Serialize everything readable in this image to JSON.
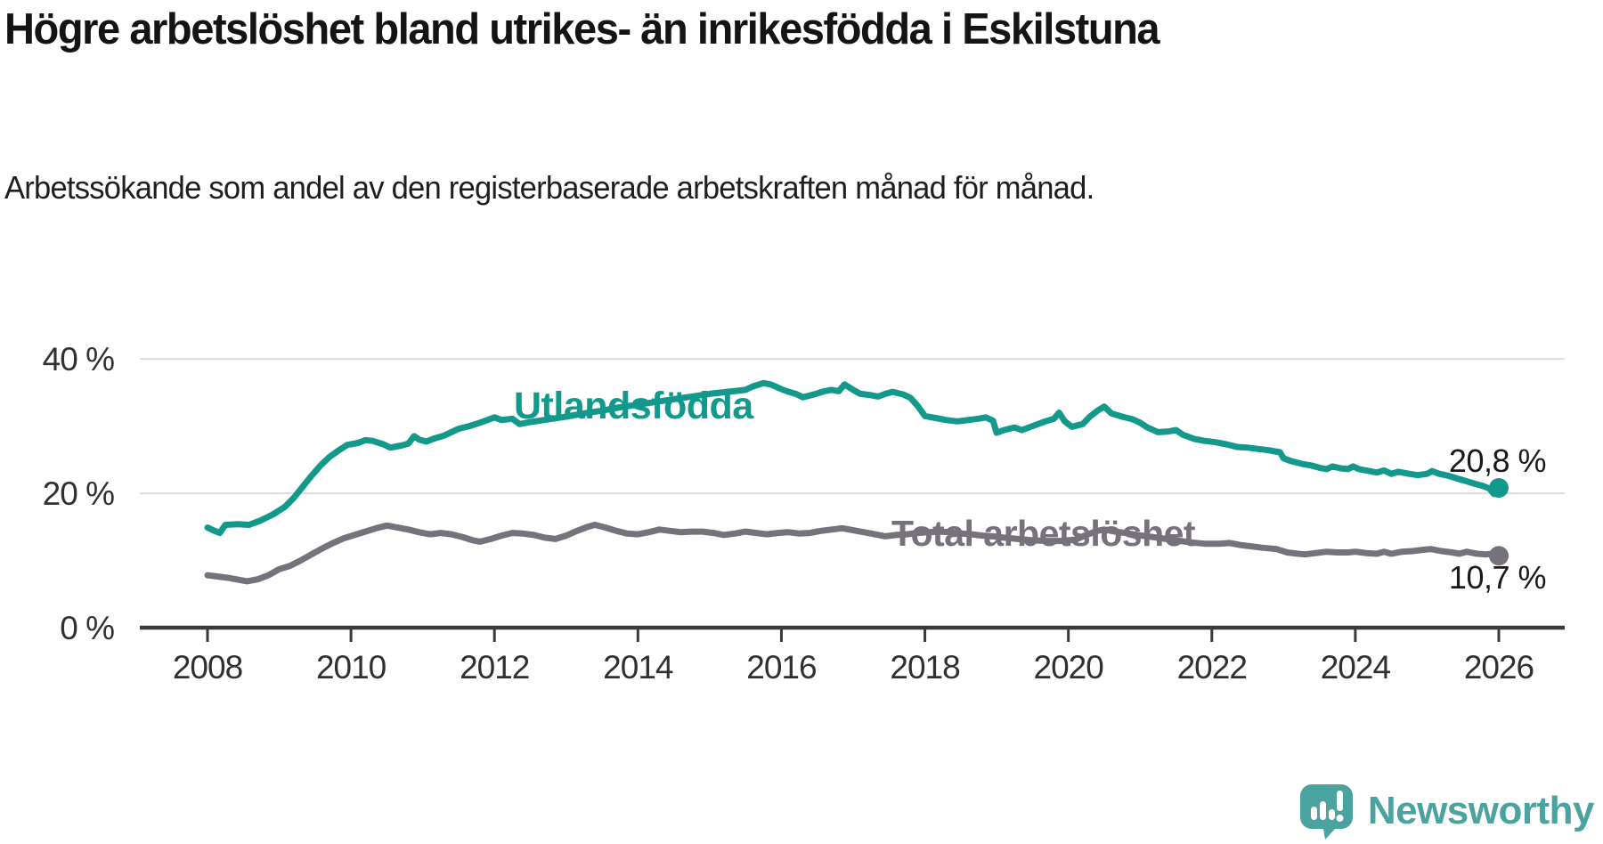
{
  "header": {
    "title": "Högre arbetslöshet bland utrikes- än inrikesfödda i Eskilstuna",
    "subtitle": "Arbetssökande som andel av den registerbaserade arbetskraften månad för månad."
  },
  "branding": {
    "logo_text": "Newsworthy",
    "logo_color": "#4ba3a0",
    "logo_icon": "newsworthy-speech-bubble-bars-icon"
  },
  "colors": {
    "series_foreign_born": "#13998b",
    "series_total": "#76717b",
    "axis": "#3a3a3a",
    "grid": "#dcdcdc",
    "tick_text": "#303030",
    "value_label_text": "#1a1a1a"
  },
  "chart_data": {
    "type": "line",
    "title": "Högre arbetslöshet bland utrikes- än inrikesfödda i Eskilstuna",
    "subtitle": "Arbetssökande som andel av den registerbaserade arbetskraften månad för månad.",
    "xlabel": "",
    "ylabel": "",
    "grid": "horizontal-only",
    "legend_position": "inline-labels-on-lines",
    "x_axis": {
      "unit": "year",
      "range": [
        2007.75,
        2026.9
      ],
      "ticks": [
        {
          "year": 2008,
          "label": "2008"
        },
        {
          "year": 2010,
          "label": "2010"
        },
        {
          "year": 2012,
          "label": "2012"
        },
        {
          "year": 2014,
          "label": "2014"
        },
        {
          "year": 2016,
          "label": "2016"
        },
        {
          "year": 2018,
          "label": "2018"
        },
        {
          "year": 2020,
          "label": "2020"
        },
        {
          "year": 2022,
          "label": "2022"
        },
        {
          "year": 2024,
          "label": "2024"
        },
        {
          "year": 2026,
          "label": "2026"
        }
      ]
    },
    "y_axis": {
      "unit": "%",
      "range": [
        0,
        44
      ],
      "ticks": [
        {
          "value": 40,
          "label": "40 %"
        },
        {
          "value": 20,
          "label": "20 %"
        },
        {
          "value": 0,
          "label": "0 %"
        }
      ]
    },
    "series": [
      {
        "name": "Utlandsfödda",
        "color": "#13998b",
        "end_value": 20.8,
        "end_label": "20,8 %",
        "points": [
          [
            2008.0,
            14.9
          ],
          [
            2008.08,
            14.5
          ],
          [
            2008.17,
            14.1
          ],
          [
            2008.25,
            15.3
          ],
          [
            2008.42,
            15.4
          ],
          [
            2008.58,
            15.3
          ],
          [
            2008.75,
            16.0
          ],
          [
            2008.92,
            16.9
          ],
          [
            2009.08,
            18.0
          ],
          [
            2009.2,
            19.3
          ],
          [
            2009.33,
            21.0
          ],
          [
            2009.45,
            22.6
          ],
          [
            2009.58,
            24.2
          ],
          [
            2009.7,
            25.4
          ],
          [
            2009.83,
            26.4
          ],
          [
            2009.95,
            27.2
          ],
          [
            2010.1,
            27.5
          ],
          [
            2010.2,
            27.9
          ],
          [
            2010.3,
            27.8
          ],
          [
            2010.45,
            27.3
          ],
          [
            2010.55,
            26.8
          ],
          [
            2010.7,
            27.1
          ],
          [
            2010.8,
            27.4
          ],
          [
            2010.88,
            28.5
          ],
          [
            2010.95,
            28.0
          ],
          [
            2011.05,
            27.7
          ],
          [
            2011.15,
            28.1
          ],
          [
            2011.3,
            28.6
          ],
          [
            2011.4,
            29.1
          ],
          [
            2011.5,
            29.6
          ],
          [
            2011.65,
            30.0
          ],
          [
            2011.8,
            30.5
          ],
          [
            2011.9,
            30.9
          ],
          [
            2012.0,
            31.3
          ],
          [
            2012.1,
            30.9
          ],
          [
            2012.25,
            31.1
          ],
          [
            2012.35,
            30.3
          ],
          [
            2012.5,
            30.6
          ],
          [
            2012.75,
            31.0
          ],
          [
            2013.0,
            31.4
          ],
          [
            2013.25,
            31.9
          ],
          [
            2013.5,
            32.3
          ],
          [
            2013.75,
            32.8
          ],
          [
            2014.0,
            33.2
          ],
          [
            2014.25,
            33.6
          ],
          [
            2014.5,
            34.0
          ],
          [
            2014.75,
            34.4
          ],
          [
            2015.0,
            34.8
          ],
          [
            2015.25,
            35.1
          ],
          [
            2015.5,
            35.4
          ],
          [
            2015.6,
            35.9
          ],
          [
            2015.75,
            36.4
          ],
          [
            2015.85,
            36.2
          ],
          [
            2016.0,
            35.5
          ],
          [
            2016.1,
            35.1
          ],
          [
            2016.2,
            34.8
          ],
          [
            2016.3,
            34.3
          ],
          [
            2016.45,
            34.7
          ],
          [
            2016.6,
            35.2
          ],
          [
            2016.7,
            35.4
          ],
          [
            2016.8,
            35.2
          ],
          [
            2016.88,
            36.2
          ],
          [
            2017.0,
            35.4
          ],
          [
            2017.1,
            34.8
          ],
          [
            2017.25,
            34.6
          ],
          [
            2017.35,
            34.4
          ],
          [
            2017.45,
            34.8
          ],
          [
            2017.55,
            35.1
          ],
          [
            2017.7,
            34.7
          ],
          [
            2017.8,
            34.2
          ],
          [
            2017.9,
            33.0
          ],
          [
            2018.0,
            31.5
          ],
          [
            2018.15,
            31.2
          ],
          [
            2018.3,
            30.9
          ],
          [
            2018.45,
            30.7
          ],
          [
            2018.6,
            30.9
          ],
          [
            2018.75,
            31.1
          ],
          [
            2018.85,
            31.3
          ],
          [
            2018.95,
            30.8
          ],
          [
            2019.0,
            29.0
          ],
          [
            2019.1,
            29.4
          ],
          [
            2019.25,
            29.8
          ],
          [
            2019.35,
            29.4
          ],
          [
            2019.5,
            30.0
          ],
          [
            2019.65,
            30.6
          ],
          [
            2019.8,
            31.1
          ],
          [
            2019.87,
            32.0
          ],
          [
            2019.95,
            30.7
          ],
          [
            2020.05,
            29.9
          ],
          [
            2020.2,
            30.3
          ],
          [
            2020.3,
            31.4
          ],
          [
            2020.42,
            32.4
          ],
          [
            2020.5,
            32.9
          ],
          [
            2020.6,
            31.9
          ],
          [
            2020.75,
            31.4
          ],
          [
            2020.9,
            31.0
          ],
          [
            2021.0,
            30.5
          ],
          [
            2021.1,
            29.8
          ],
          [
            2021.25,
            29.1
          ],
          [
            2021.4,
            29.2
          ],
          [
            2021.5,
            29.4
          ],
          [
            2021.6,
            28.7
          ],
          [
            2021.75,
            28.1
          ],
          [
            2021.9,
            27.8
          ],
          [
            2022.05,
            27.6
          ],
          [
            2022.2,
            27.3
          ],
          [
            2022.35,
            26.9
          ],
          [
            2022.5,
            26.8
          ],
          [
            2022.65,
            26.6
          ],
          [
            2022.8,
            26.4
          ],
          [
            2022.95,
            26.1
          ],
          [
            2023.0,
            25.2
          ],
          [
            2023.1,
            24.8
          ],
          [
            2023.25,
            24.4
          ],
          [
            2023.4,
            24.1
          ],
          [
            2023.5,
            23.8
          ],
          [
            2023.6,
            23.6
          ],
          [
            2023.68,
            24.0
          ],
          [
            2023.8,
            23.7
          ],
          [
            2023.9,
            23.6
          ],
          [
            2023.97,
            24.0
          ],
          [
            2024.05,
            23.6
          ],
          [
            2024.2,
            23.3
          ],
          [
            2024.3,
            23.1
          ],
          [
            2024.4,
            23.4
          ],
          [
            2024.5,
            22.9
          ],
          [
            2024.6,
            23.2
          ],
          [
            2024.75,
            22.9
          ],
          [
            2024.87,
            22.7
          ],
          [
            2025.0,
            22.9
          ],
          [
            2025.07,
            23.3
          ],
          [
            2025.17,
            22.9
          ],
          [
            2025.3,
            22.6
          ],
          [
            2025.42,
            22.2
          ],
          [
            2025.55,
            21.8
          ],
          [
            2025.67,
            21.4
          ],
          [
            2025.78,
            21.1
          ],
          [
            2025.87,
            20.7
          ],
          [
            2025.93,
            19.9
          ],
          [
            2026.0,
            20.8
          ]
        ]
      },
      {
        "name": "Total arbetslöshet",
        "color": "#76717b",
        "end_value": 10.7,
        "end_label": "10,7 %",
        "points": [
          [
            2008.0,
            7.8
          ],
          [
            2008.15,
            7.6
          ],
          [
            2008.3,
            7.4
          ],
          [
            2008.45,
            7.1
          ],
          [
            2008.55,
            6.9
          ],
          [
            2008.7,
            7.2
          ],
          [
            2008.85,
            7.8
          ],
          [
            2009.0,
            8.7
          ],
          [
            2009.15,
            9.2
          ],
          [
            2009.3,
            10.0
          ],
          [
            2009.45,
            10.9
          ],
          [
            2009.6,
            11.8
          ],
          [
            2009.75,
            12.6
          ],
          [
            2009.9,
            13.3
          ],
          [
            2010.05,
            13.8
          ],
          [
            2010.2,
            14.3
          ],
          [
            2010.35,
            14.8
          ],
          [
            2010.5,
            15.2
          ],
          [
            2010.65,
            14.9
          ],
          [
            2010.8,
            14.6
          ],
          [
            2010.95,
            14.2
          ],
          [
            2011.1,
            13.9
          ],
          [
            2011.25,
            14.1
          ],
          [
            2011.4,
            13.9
          ],
          [
            2011.55,
            13.5
          ],
          [
            2011.7,
            13.0
          ],
          [
            2011.8,
            12.8
          ],
          [
            2011.95,
            13.2
          ],
          [
            2012.1,
            13.7
          ],
          [
            2012.25,
            14.1
          ],
          [
            2012.4,
            14.0
          ],
          [
            2012.55,
            13.8
          ],
          [
            2012.7,
            13.4
          ],
          [
            2012.85,
            13.2
          ],
          [
            2013.0,
            13.7
          ],
          [
            2013.15,
            14.4
          ],
          [
            2013.3,
            15.0
          ],
          [
            2013.4,
            15.3
          ],
          [
            2013.55,
            14.9
          ],
          [
            2013.7,
            14.4
          ],
          [
            2013.85,
            14.0
          ],
          [
            2014.0,
            13.9
          ],
          [
            2014.15,
            14.2
          ],
          [
            2014.3,
            14.6
          ],
          [
            2014.45,
            14.4
          ],
          [
            2014.6,
            14.2
          ],
          [
            2014.75,
            14.3
          ],
          [
            2014.9,
            14.3
          ],
          [
            2015.05,
            14.1
          ],
          [
            2015.2,
            13.8
          ],
          [
            2015.35,
            14.0
          ],
          [
            2015.5,
            14.3
          ],
          [
            2015.65,
            14.1
          ],
          [
            2015.8,
            13.9
          ],
          [
            2015.95,
            14.1
          ],
          [
            2016.1,
            14.2
          ],
          [
            2016.25,
            14.0
          ],
          [
            2016.4,
            14.1
          ],
          [
            2016.55,
            14.4
          ],
          [
            2016.7,
            14.6
          ],
          [
            2016.85,
            14.8
          ],
          [
            2017.0,
            14.5
          ],
          [
            2017.15,
            14.2
          ],
          [
            2017.3,
            13.9
          ],
          [
            2017.45,
            13.6
          ],
          [
            2017.6,
            13.8
          ],
          [
            2017.75,
            13.9
          ],
          [
            2017.9,
            14.1
          ],
          [
            2018.05,
            14.2
          ],
          [
            2018.2,
            14.3
          ],
          [
            2018.35,
            14.2
          ],
          [
            2018.5,
            14.0
          ],
          [
            2018.65,
            13.9
          ],
          [
            2018.8,
            13.7
          ],
          [
            2018.95,
            13.6
          ],
          [
            2019.1,
            13.4
          ],
          [
            2019.3,
            13.2
          ],
          [
            2019.5,
            13.0
          ],
          [
            2019.7,
            12.9
          ],
          [
            2019.9,
            12.9
          ],
          [
            2020.1,
            13.1
          ],
          [
            2020.25,
            13.8
          ],
          [
            2020.4,
            14.4
          ],
          [
            2020.5,
            14.6
          ],
          [
            2020.65,
            14.3
          ],
          [
            2020.8,
            14.1
          ],
          [
            2020.95,
            13.8
          ],
          [
            2021.1,
            13.6
          ],
          [
            2021.3,
            13.3
          ],
          [
            2021.5,
            13.0
          ],
          [
            2021.7,
            12.7
          ],
          [
            2021.9,
            12.5
          ],
          [
            2022.1,
            12.5
          ],
          [
            2022.25,
            12.6
          ],
          [
            2022.4,
            12.3
          ],
          [
            2022.55,
            12.1
          ],
          [
            2022.7,
            11.9
          ],
          [
            2022.9,
            11.7
          ],
          [
            2023.05,
            11.2
          ],
          [
            2023.2,
            11.0
          ],
          [
            2023.3,
            10.9
          ],
          [
            2023.45,
            11.1
          ],
          [
            2023.6,
            11.3
          ],
          [
            2023.75,
            11.2
          ],
          [
            2023.9,
            11.2
          ],
          [
            2024.0,
            11.3
          ],
          [
            2024.15,
            11.1
          ],
          [
            2024.3,
            11.0
          ],
          [
            2024.4,
            11.3
          ],
          [
            2024.5,
            11.0
          ],
          [
            2024.65,
            11.3
          ],
          [
            2024.8,
            11.4
          ],
          [
            2024.95,
            11.6
          ],
          [
            2025.05,
            11.7
          ],
          [
            2025.2,
            11.4
          ],
          [
            2025.35,
            11.2
          ],
          [
            2025.45,
            11.0
          ],
          [
            2025.55,
            11.3
          ],
          [
            2025.7,
            11.0
          ],
          [
            2025.82,
            10.9
          ],
          [
            2025.9,
            11.0
          ],
          [
            2025.95,
            10.3
          ],
          [
            2026.0,
            10.7
          ]
        ]
      }
    ]
  }
}
